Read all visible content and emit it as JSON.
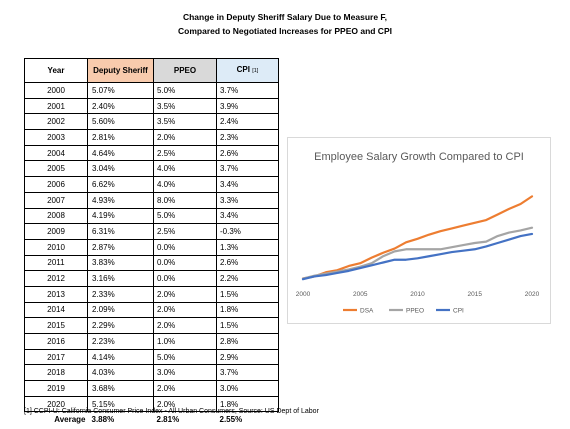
{
  "title_line1": "Change in Deputy Sheriff Salary Due to Measure F,",
  "title_line2": "Compared to Negotiated Increases for PPEO and CPI",
  "table": {
    "headers": {
      "year": "Year",
      "ds": "Deputy Sheriff",
      "ppeo": "PPEO",
      "cpi": "CPI",
      "cpi_note": "[1]"
    },
    "rows": [
      {
        "year": "2000",
        "ds": "5.07%",
        "ppeo": "5.0%",
        "cpi": "3.7%"
      },
      {
        "year": "2001",
        "ds": "2.40%",
        "ppeo": "3.5%",
        "cpi": "3.9%"
      },
      {
        "year": "2002",
        "ds": "5.60%",
        "ppeo": "3.5%",
        "cpi": "2.4%"
      },
      {
        "year": "2003",
        "ds": "2.81%",
        "ppeo": "2.0%",
        "cpi": "2.3%"
      },
      {
        "year": "2004",
        "ds": "4.64%",
        "ppeo": "2.5%",
        "cpi": "2.6%"
      },
      {
        "year": "2005",
        "ds": "3.04%",
        "ppeo": "4.0%",
        "cpi": "3.7%"
      },
      {
        "year": "2006",
        "ds": "6.62%",
        "ppeo": "4.0%",
        "cpi": "3.4%"
      },
      {
        "year": "2007",
        "ds": "4.93%",
        "ppeo": "8.0%",
        "cpi": "3.3%"
      },
      {
        "year": "2008",
        "ds": "4.19%",
        "ppeo": "5.0%",
        "cpi": "3.4%"
      },
      {
        "year": "2009",
        "ds": "6.31%",
        "ppeo": "2.5%",
        "cpi": "-0.3%"
      },
      {
        "year": "2010",
        "ds": "2.87%",
        "ppeo": "0.0%",
        "cpi": "1.3%"
      },
      {
        "year": "2011",
        "ds": "3.83%",
        "ppeo": "0.0%",
        "cpi": "2.6%"
      },
      {
        "year": "2012",
        "ds": "3.16%",
        "ppeo": "0.0%",
        "cpi": "2.2%"
      },
      {
        "year": "2013",
        "ds": "2.33%",
        "ppeo": "2.0%",
        "cpi": "1.5%"
      },
      {
        "year": "2014",
        "ds": "2.09%",
        "ppeo": "2.0%",
        "cpi": "1.8%"
      },
      {
        "year": "2015",
        "ds": "2.29%",
        "ppeo": "2.0%",
        "cpi": "1.5%"
      },
      {
        "year": "2016",
        "ds": "2.23%",
        "ppeo": "1.0%",
        "cpi": "2.8%"
      },
      {
        "year": "2017",
        "ds": "4.14%",
        "ppeo": "5.0%",
        "cpi": "2.9%"
      },
      {
        "year": "2018",
        "ds": "4.03%",
        "ppeo": "3.0%",
        "cpi": "3.7%"
      },
      {
        "year": "2019",
        "ds": "3.68%",
        "ppeo": "2.0%",
        "cpi": "3.0%"
      },
      {
        "year": "2020",
        "ds": "5.15%",
        "ppeo": "2.0%",
        "cpi": "1.8%"
      }
    ],
    "average": {
      "label": "Average",
      "ds": "3.88%",
      "ppeo": "2.81%",
      "cpi": "2.55%"
    }
  },
  "footnote": "[1] CCPI-U: California Consumer Price Index - All Urban Consumers, Source: US Dept of Labor",
  "chart_data": {
    "type": "line",
    "title": "Employee Salary Growth Compared to CPI",
    "x": [
      2000,
      2001,
      2002,
      2003,
      2004,
      2005,
      2006,
      2007,
      2008,
      2009,
      2010,
      2011,
      2012,
      2013,
      2014,
      2015,
      2016,
      2017,
      2018,
      2019,
      2020
    ],
    "x_ticks": [
      "2000",
      "2005",
      "2010",
      "2015",
      "2020"
    ],
    "xlim": [
      2000,
      2020
    ],
    "series": [
      {
        "name": "DSA",
        "color": "#ed7d31",
        "values": [
          1.05,
          1.08,
          1.14,
          1.17,
          1.23,
          1.27,
          1.35,
          1.42,
          1.48,
          1.57,
          1.62,
          1.68,
          1.73,
          1.77,
          1.81,
          1.85,
          1.89,
          1.97,
          2.05,
          2.12,
          2.23
        ]
      },
      {
        "name": "PPEO",
        "color": "#a5a5a5",
        "values": [
          1.05,
          1.09,
          1.12,
          1.15,
          1.18,
          1.22,
          1.27,
          1.37,
          1.44,
          1.47,
          1.47,
          1.47,
          1.47,
          1.5,
          1.53,
          1.56,
          1.58,
          1.66,
          1.71,
          1.74,
          1.78
        ]
      },
      {
        "name": "CPI",
        "color": "#4472c4",
        "values": [
          1.04,
          1.08,
          1.1,
          1.13,
          1.16,
          1.2,
          1.24,
          1.28,
          1.32,
          1.32,
          1.34,
          1.37,
          1.4,
          1.43,
          1.45,
          1.47,
          1.51,
          1.56,
          1.61,
          1.66,
          1.69
        ]
      }
    ],
    "ylim": [
      1.0,
      2.35
    ],
    "legend": "bottom",
    "grid": false
  }
}
